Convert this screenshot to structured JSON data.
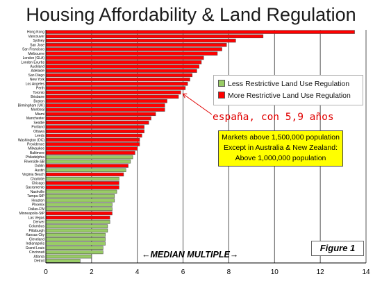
{
  "colors": {
    "less_restrictive": "#99cc66",
    "more_restrictive": "#ff0000",
    "annotation": "#e00000",
    "note_box": "#ffff00"
  },
  "chart_data": {
    "type": "bar",
    "orientation": "horizontal",
    "title": "Housing Affordability & Land Regulation",
    "xlim": [
      0,
      14
    ],
    "xticks": [
      0,
      2,
      4,
      6,
      8,
      10,
      12,
      14
    ],
    "grid": "vertical",
    "legend_position": "top-right",
    "series": [
      {
        "name": "Less Restrictive Land Use Regulation",
        "color": "#99cc66"
      },
      {
        "name": "More Restrictive Land Use Regulation",
        "color": "#ff0000"
      }
    ],
    "bars": [
      {
        "label": "Hong Kong",
        "value": 13.5,
        "group": "more"
      },
      {
        "label": "Vancouver",
        "value": 9.5,
        "group": "more"
      },
      {
        "label": "Sydney",
        "value": 8.3,
        "group": "more"
      },
      {
        "label": "San Jose",
        "value": 7.9,
        "group": "more"
      },
      {
        "label": "San Francisco",
        "value": 7.7,
        "group": "more"
      },
      {
        "label": "Melbourne",
        "value": 7.5,
        "group": "more"
      },
      {
        "label": "London (GLA)",
        "value": 6.9,
        "group": "more"
      },
      {
        "label": "London Exurbs",
        "value": 6.8,
        "group": "more"
      },
      {
        "label": "Auckland",
        "value": 6.7,
        "group": "more"
      },
      {
        "label": "Adelaide",
        "value": 6.6,
        "group": "more"
      },
      {
        "label": "San Diego",
        "value": 6.4,
        "group": "more"
      },
      {
        "label": "New York",
        "value": 6.3,
        "group": "more"
      },
      {
        "label": "Los Angeles",
        "value": 6.2,
        "group": "more"
      },
      {
        "label": "Perth",
        "value": 6.1,
        "group": "more"
      },
      {
        "label": "Toronto",
        "value": 5.9,
        "group": "more"
      },
      {
        "label": "Brisbane",
        "value": 5.8,
        "group": "more"
      },
      {
        "label": "Boston",
        "value": 5.3,
        "group": "more"
      },
      {
        "label": "Birmingham (UK)",
        "value": 5.2,
        "group": "more"
      },
      {
        "label": "Montreal",
        "value": 5.2,
        "group": "more"
      },
      {
        "label": "Miami",
        "value": 4.8,
        "group": "more"
      },
      {
        "label": "Manchester",
        "value": 4.6,
        "group": "more"
      },
      {
        "label": "Seattle",
        "value": 4.5,
        "group": "more"
      },
      {
        "label": "Portland",
        "value": 4.3,
        "group": "more"
      },
      {
        "label": "Ottawa",
        "value": 4.3,
        "group": "more"
      },
      {
        "label": "Leeds",
        "value": 4.2,
        "group": "more"
      },
      {
        "label": "Washington (DC)",
        "value": 4.1,
        "group": "more"
      },
      {
        "label": "Providence",
        "value": 4.1,
        "group": "more"
      },
      {
        "label": "Milwaukee",
        "value": 4.0,
        "group": "more"
      },
      {
        "label": "Baltimore",
        "value": 3.9,
        "group": "more"
      },
      {
        "label": "Philadelphia",
        "value": 3.8,
        "group": "less"
      },
      {
        "label": "Riverside-SB",
        "value": 3.7,
        "group": "less"
      },
      {
        "label": "Dublin",
        "value": 3.6,
        "group": "more"
      },
      {
        "label": "Austin",
        "value": 3.5,
        "group": "less"
      },
      {
        "label": "Virginia Beach",
        "value": 3.4,
        "group": "more"
      },
      {
        "label": "Charlotte",
        "value": 3.2,
        "group": "less"
      },
      {
        "label": "Chicago",
        "value": 3.2,
        "group": "more"
      },
      {
        "label": "Sacramento",
        "value": 3.2,
        "group": "more"
      },
      {
        "label": "Nashville",
        "value": 3.1,
        "group": "less"
      },
      {
        "label": "Tampa-StP",
        "value": 3.0,
        "group": "less"
      },
      {
        "label": "Houston",
        "value": 3.0,
        "group": "less"
      },
      {
        "label": "Phoenix",
        "value": 2.9,
        "group": "less"
      },
      {
        "label": "Dallas-FW",
        "value": 2.9,
        "group": "less"
      },
      {
        "label": "Minneapolis-StP",
        "value": 2.9,
        "group": "more"
      },
      {
        "label": "Las Vegas",
        "value": 2.8,
        "group": "more"
      },
      {
        "label": "Denver",
        "value": 2.8,
        "group": "less"
      },
      {
        "label": "Columbus",
        "value": 2.7,
        "group": "less"
      },
      {
        "label": "Pittsburgh",
        "value": 2.7,
        "group": "less"
      },
      {
        "label": "Kansas City",
        "value": 2.6,
        "group": "less"
      },
      {
        "label": "Cleveland",
        "value": 2.6,
        "group": "less"
      },
      {
        "label": "Indianapolis",
        "value": 2.6,
        "group": "less"
      },
      {
        "label": "Grand Louis",
        "value": 2.5,
        "group": "less"
      },
      {
        "label": "Cincinnati",
        "value": 2.5,
        "group": "less"
      },
      {
        "label": "Atlanta",
        "value": 2.0,
        "group": "less"
      },
      {
        "label": "Detroit",
        "value": 1.5,
        "group": "less"
      }
    ]
  },
  "texts": {
    "title": "Housing Affordability & Land Regulation",
    "legend_less": "Less Restrictive Land Use Regulation",
    "legend_more": "More Restrictive Land Use Regulation",
    "annotation": "españa, con 5,9 años",
    "note_line1": "Markets above 1,500,000 population",
    "note_line2": "Except in Australia & New Zealand:",
    "note_line3": "Above 1,000,000 population",
    "median_label": "←MEDIAN MULTIPLE→",
    "figure_label": "Figure 1"
  }
}
